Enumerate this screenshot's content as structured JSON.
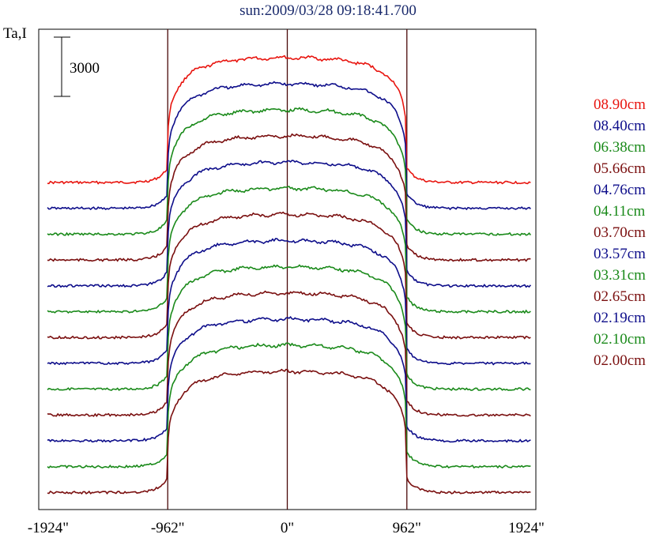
{
  "title": "sun:2009/03/28 09:18:41.700",
  "chart_data": {
    "type": "line",
    "ylabel": "Ta,I",
    "scale_bar_label": "3000",
    "scale_bar_value": 3000,
    "xlim": [
      -2000,
      2000
    ],
    "x_ticks": [
      "-1924\"",
      "-962\"",
      "0\"",
      "962\"",
      "1924\""
    ],
    "x_tick_values": [
      -1924,
      -962,
      0,
      962,
      1924
    ],
    "vertical_markers": [
      -962,
      0,
      962
    ],
    "grid": false,
    "legend_position": "right",
    "series": [
      {
        "name": "08.90cm",
        "color": "#e8150f"
      },
      {
        "name": "08.40cm",
        "color": "#0d0d8a"
      },
      {
        "name": "06.38cm",
        "color": "#1a8a1a"
      },
      {
        "name": "05.66cm",
        "color": "#7a0f0f"
      },
      {
        "name": "04.76cm",
        "color": "#0d0d8a"
      },
      {
        "name": "04.11cm",
        "color": "#1a8a1a"
      },
      {
        "name": "03.70cm",
        "color": "#7a0f0f"
      },
      {
        "name": "03.57cm",
        "color": "#0d0d8a"
      },
      {
        "name": "03.31cm",
        "color": "#1a8a1a"
      },
      {
        "name": "02.65cm",
        "color": "#7a0f0f"
      },
      {
        "name": "02.19cm",
        "color": "#0d0d8a"
      },
      {
        "name": "02.10cm",
        "color": "#1a8a1a"
      },
      {
        "name": "02.00cm",
        "color": "#7a0f0f"
      }
    ]
  }
}
